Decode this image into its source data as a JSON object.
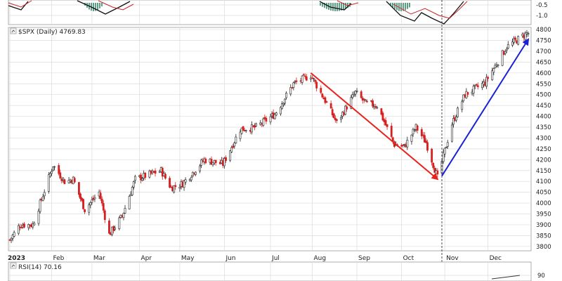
{
  "header": {
    "symbol_label": "$SPX (Daily) 4769.83",
    "rsi_label": "RSI(14) 70.16"
  },
  "colors": {
    "up": "#222222",
    "down": "#d42020",
    "grid": "#dcdcdc",
    "red_arrow": "#e8231d",
    "blue_arrow": "#1a22d6",
    "histogram": "#5f9e86"
  },
  "chart_data": {
    "type": "candlestick",
    "title": "$SPX (Daily) 4769.83",
    "y_ticks": [
      3800,
      3850,
      3900,
      3950,
      4000,
      4050,
      4100,
      4150,
      4200,
      4250,
      4300,
      4350,
      4400,
      4450,
      4500,
      4550,
      4600,
      4650,
      4700,
      4750,
      4800
    ],
    "ylim": [
      3780,
      4810
    ],
    "month_labels": [
      {
        "label": "2023",
        "date": "2023-01-03"
      },
      {
        "label": "Feb",
        "date": "2023-02-01"
      },
      {
        "label": "Mar",
        "date": "2023-03-01"
      },
      {
        "label": "Apr",
        "date": "2023-04-03"
      },
      {
        "label": "May",
        "date": "2023-05-01"
      },
      {
        "label": "Jun",
        "date": "2023-06-01"
      },
      {
        "label": "Jul",
        "date": "2023-07-03"
      },
      {
        "label": "Aug",
        "date": "2023-08-01"
      },
      {
        "label": "Sep",
        "date": "2023-09-01"
      },
      {
        "label": "Oct",
        "date": "2023-10-02"
      },
      {
        "label": "Nov",
        "date": "2023-11-01"
      },
      {
        "label": "Dec",
        "date": "2023-12-01"
      }
    ],
    "x_range": [
      "2023-01-03",
      "2023-12-29"
    ],
    "close_path": [
      {
        "date": "2023-01-03",
        "close": 3830
      },
      {
        "date": "2023-01-10",
        "close": 3900
      },
      {
        "date": "2023-01-19",
        "close": 3900
      },
      {
        "date": "2023-02-02",
        "close": 4175
      },
      {
        "date": "2023-02-10",
        "close": 4100
      },
      {
        "date": "2023-02-16",
        "close": 4110
      },
      {
        "date": "2023-02-24",
        "close": 3970
      },
      {
        "date": "2023-03-06",
        "close": 4050
      },
      {
        "date": "2023-03-13",
        "close": 3855
      },
      {
        "date": "2023-03-22",
        "close": 3940
      },
      {
        "date": "2023-03-31",
        "close": 4110
      },
      {
        "date": "2023-04-18",
        "close": 4150
      },
      {
        "date": "2023-04-25",
        "close": 4070
      },
      {
        "date": "2023-05-03",
        "close": 4090
      },
      {
        "date": "2023-05-18",
        "close": 4200
      },
      {
        "date": "2023-05-31",
        "close": 4180
      },
      {
        "date": "2023-06-12",
        "close": 4340
      },
      {
        "date": "2023-06-23",
        "close": 4350
      },
      {
        "date": "2023-07-06",
        "close": 4410
      },
      {
        "date": "2023-07-19",
        "close": 4550
      },
      {
        "date": "2023-07-31",
        "close": 4590
      },
      {
        "date": "2023-08-11",
        "close": 4460
      },
      {
        "date": "2023-08-18",
        "close": 4370
      },
      {
        "date": "2023-08-31",
        "close": 4510
      },
      {
        "date": "2023-09-07",
        "close": 4460
      },
      {
        "date": "2023-09-15",
        "close": 4450
      },
      {
        "date": "2023-09-27",
        "close": 4270
      },
      {
        "date": "2023-10-04",
        "close": 4260
      },
      {
        "date": "2023-10-12",
        "close": 4350
      },
      {
        "date": "2023-10-19",
        "close": 4280
      },
      {
        "date": "2023-10-27",
        "close": 4117
      },
      {
        "date": "2023-11-06",
        "close": 4365
      },
      {
        "date": "2023-11-15",
        "close": 4500
      },
      {
        "date": "2023-11-29",
        "close": 4555
      },
      {
        "date": "2023-12-14",
        "close": 4720
      },
      {
        "date": "2023-12-28",
        "close": 4783
      }
    ],
    "annotations": [
      {
        "type": "arrow",
        "color": "red",
        "from": {
          "date": "2023-07-31",
          "value": 4600
        },
        "to": {
          "date": "2023-10-27",
          "value": 4110
        }
      },
      {
        "type": "arrow",
        "color": "blue",
        "from": {
          "date": "2023-10-30",
          "value": 4125
        },
        "to": {
          "date": "2023-12-29",
          "value": 4755
        }
      },
      {
        "type": "vertical-dashed-line",
        "date": "2023-10-30"
      }
    ],
    "upper_panel": {
      "y_ticks": [
        -0.5,
        -1.0
      ],
      "y_tick_labels": [
        "-0.5",
        "-1.0"
      ]
    },
    "rsi_panel": {
      "name": "RSI(14)",
      "value": 70.16,
      "y_ticks": [
        90
      ],
      "y_tick_labels": [
        "90"
      ]
    }
  }
}
